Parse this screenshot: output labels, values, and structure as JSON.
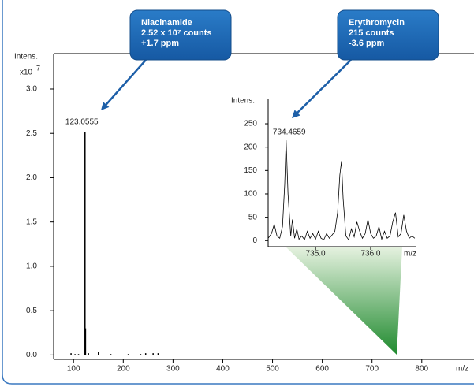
{
  "chart_data": [
    {
      "type": "stick",
      "y_axis_label": "Intens.",
      "y_scale_label": "x10",
      "y_scale_exponent": "7",
      "x_axis_label": "m/z",
      "x": [
        95,
        103,
        110,
        123.0555,
        124.06,
        130,
        150,
        175,
        210,
        235,
        245,
        260,
        270
      ],
      "values": [
        0.02,
        0.01,
        0.01,
        2.52,
        0.3,
        0.02,
        0.03,
        0.01,
        0.01,
        0.01,
        0.02,
        0.02,
        0.02
      ],
      "color": "#000000",
      "xlim": [
        60,
        905
      ],
      "ylim": [
        -0.05,
        3.4
      ],
      "xticks": [
        100,
        200,
        300,
        400,
        500,
        600,
        700,
        800
      ],
      "yticks": [
        {
          "value": 0,
          "label": "0.0"
        },
        0.5,
        {
          "value": 1,
          "label": "1.0"
        },
        1.5,
        {
          "value": 2,
          "label": "2.0"
        },
        2.5,
        {
          "value": 3,
          "label": "3.0"
        }
      ],
      "peak_label": "123.0555",
      "callouts": [
        {
          "lines": [
            "Niacinamide",
            "2.52 x 10⁷ counts",
            "+1.7 ppm"
          ]
        },
        {
          "lines": [
            "Erythromycin",
            "215 counts",
            "-3.6 ppm"
          ]
        }
      ]
    },
    {
      "type": "line",
      "y_axis_label": "Intens.",
      "x_axis_label": "m/z",
      "x": [
        734.14,
        734.2,
        734.25,
        734.3,
        734.35,
        734.4,
        734.44,
        734.4659,
        734.5,
        734.55,
        734.58,
        734.62,
        734.66,
        734.7,
        734.75,
        734.8,
        734.85,
        734.9,
        734.95,
        735.0,
        735.05,
        735.1,
        735.15,
        735.2,
        735.25,
        735.3,
        735.35,
        735.4,
        735.44,
        735.47,
        735.5,
        735.55,
        735.6,
        735.65,
        735.7,
        735.75,
        735.8,
        735.85,
        735.9,
        735.95,
        736.0,
        736.05,
        736.1,
        736.15,
        736.2,
        736.25,
        736.3,
        736.35,
        736.4,
        736.45,
        736.5,
        736.55,
        736.6,
        736.65,
        736.7,
        736.75,
        736.8
      ],
      "values": [
        5,
        15,
        35,
        10,
        5,
        30,
        120,
        215,
        100,
        10,
        45,
        5,
        25,
        3,
        10,
        2,
        20,
        5,
        15,
        3,
        20,
        5,
        2,
        15,
        5,
        12,
        20,
        60,
        140,
        170,
        90,
        10,
        2,
        25,
        8,
        40,
        20,
        5,
        15,
        45,
        15,
        5,
        10,
        30,
        3,
        20,
        5,
        10,
        40,
        60,
        8,
        15,
        55,
        20,
        5,
        10,
        5
      ],
      "color": "#000000",
      "xlim": [
        734.14,
        736.83
      ],
      "ylim": [
        -13,
        304
      ],
      "xticks": [
        {
          "value": 735,
          "label": "735.0"
        },
        {
          "value": 736,
          "label": "736.0"
        }
      ],
      "yticks": [
        0,
        50,
        100,
        150,
        200,
        250
      ],
      "peak_label": "734.4659"
    }
  ]
}
